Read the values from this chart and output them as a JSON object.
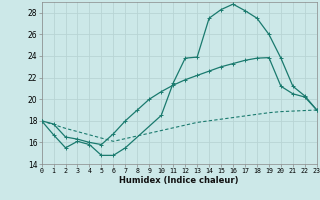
{
  "xlabel": "Humidex (Indice chaleur)",
  "bg_color": "#cce8e8",
  "grid_color": "#b8d4d4",
  "line_color": "#1a7a6e",
  "xlim": [
    0,
    23
  ],
  "ylim": [
    14,
    29
  ],
  "xticks": [
    0,
    1,
    2,
    3,
    4,
    5,
    6,
    7,
    8,
    9,
    10,
    11,
    12,
    13,
    14,
    15,
    16,
    17,
    18,
    19,
    20,
    21,
    22,
    23
  ],
  "yticks": [
    14,
    16,
    18,
    20,
    22,
    24,
    26,
    28
  ],
  "line1_x": [
    0,
    1,
    2,
    3,
    4,
    5,
    6,
    7,
    10,
    11,
    12,
    13,
    14,
    15,
    16,
    17,
    18,
    19,
    20,
    21,
    22,
    23
  ],
  "line1_y": [
    18,
    16.7,
    15.5,
    16.1,
    15.8,
    14.8,
    14.8,
    15.5,
    18.5,
    21.5,
    23.8,
    23.9,
    27.5,
    28.3,
    28.8,
    28.2,
    27.5,
    26.0,
    23.8,
    21.2,
    20.3,
    19.0
  ],
  "line2_x": [
    0,
    1,
    2,
    3,
    4,
    5,
    6,
    7,
    8,
    9,
    10,
    11,
    12,
    13,
    14,
    15,
    16,
    17,
    18,
    19,
    20,
    21,
    22,
    23
  ],
  "line2_y": [
    18.0,
    17.65,
    17.3,
    17.0,
    16.7,
    16.4,
    16.1,
    16.35,
    16.6,
    16.85,
    17.1,
    17.35,
    17.6,
    17.85,
    18.0,
    18.15,
    18.3,
    18.45,
    18.6,
    18.75,
    18.85,
    18.9,
    18.95,
    19.0
  ],
  "line3_x": [
    0,
    1,
    2,
    3,
    4,
    5,
    6,
    7,
    8,
    9,
    10,
    11,
    12,
    13,
    14,
    15,
    16,
    17,
    18,
    19,
    20,
    21,
    22,
    23
  ],
  "line3_y": [
    18.0,
    17.7,
    16.5,
    16.3,
    16.0,
    15.8,
    16.8,
    18.0,
    19.0,
    20.0,
    20.7,
    21.3,
    21.8,
    22.2,
    22.6,
    23.0,
    23.3,
    23.6,
    23.8,
    23.85,
    21.2,
    20.5,
    20.2,
    19.0
  ]
}
